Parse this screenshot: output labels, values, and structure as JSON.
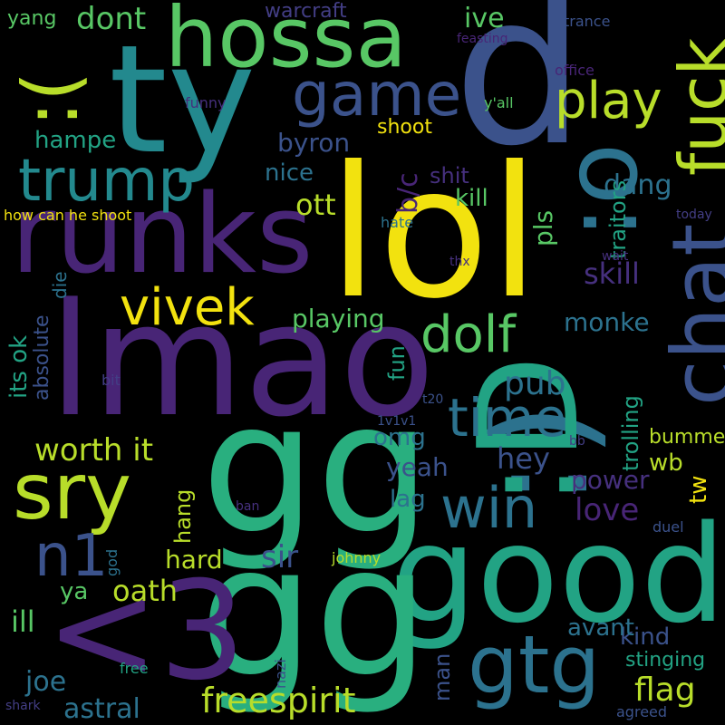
{
  "palette": {
    "yellow": "#f2e20f",
    "lime": "#b8dd2a",
    "green": "#58c765",
    "teal": "#22a384",
    "mint": "#29af7f",
    "cyan": "#23898e",
    "steel": "#2c728e",
    "blue": "#3b528b",
    "indigo": "#433e85",
    "purple": "#482576",
    "violet": "#46307e"
  },
  "words": [
    "lol",
    "d",
    "ty",
    "hossa",
    "runks",
    "lmao",
    "gg",
    "good",
    "gg",
    "<3",
    "chat",
    "fuck",
    ":(",
    ":o",
    ":)",
    ":D",
    "game",
    "trump",
    "play",
    "vivek",
    "dolf",
    "sry",
    "win",
    "time",
    "n1",
    "gtg",
    "worth it",
    "freespirit",
    "astral",
    "oath",
    "ya",
    "joe",
    "ill",
    "hard",
    "sir",
    "power",
    "love",
    "lag",
    "yeah",
    "omg",
    "pub",
    "hey",
    "playing",
    "monke",
    "skill",
    "kill",
    "ott",
    "nice",
    "byron",
    "dang",
    "shit",
    "b/c",
    "pls",
    "traitors",
    "trolling",
    "bummer",
    "wb",
    "tw",
    "kind",
    "flag",
    "stinging",
    "avant",
    "man",
    "fun",
    "ive",
    "shoot",
    "dont",
    "warcraft",
    "yang",
    "hampe",
    "its ok",
    "absolute",
    "die",
    "hang",
    "feasting",
    "office",
    "trance",
    "funny",
    "y'all",
    "how can he shoot",
    "hate",
    "thx",
    "wait",
    "today",
    "bit",
    "t20",
    "1v1v1",
    "bb",
    "ban",
    "duel",
    "johnny",
    "god",
    "free",
    "nazi",
    "shark",
    "agreed"
  ]
}
